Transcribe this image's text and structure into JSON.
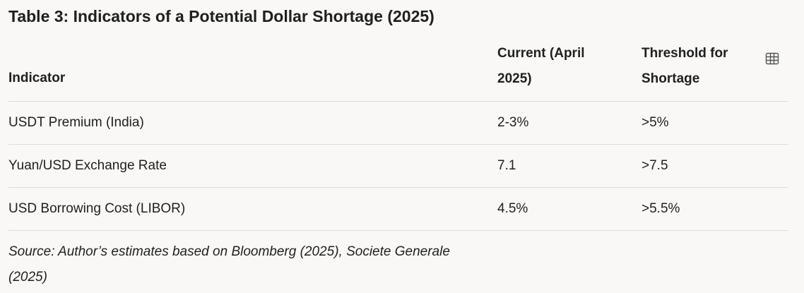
{
  "title": "Table 3: Indicators of a Potential Dollar Shortage (2025)",
  "columns": {
    "indicator": "Indicator",
    "current": "Current (April 2025)",
    "threshold": "Threshold for Shortage"
  },
  "rows": [
    {
      "indicator": "USDT Premium (India)",
      "current": "2-3%",
      "threshold": ">5%"
    },
    {
      "indicator": "Yuan/USD Exchange Rate",
      "current": "7.1",
      "threshold": ">7.5"
    },
    {
      "indicator": "USD Borrowing Cost (LIBOR)",
      "current": "4.5%",
      "threshold": ">5.5%"
    }
  ],
  "source": "Source: Author’s estimates based on Bloomberg (2025), Societe Generale (2025)",
  "icons": {
    "table_view": "table-grid-icon"
  }
}
